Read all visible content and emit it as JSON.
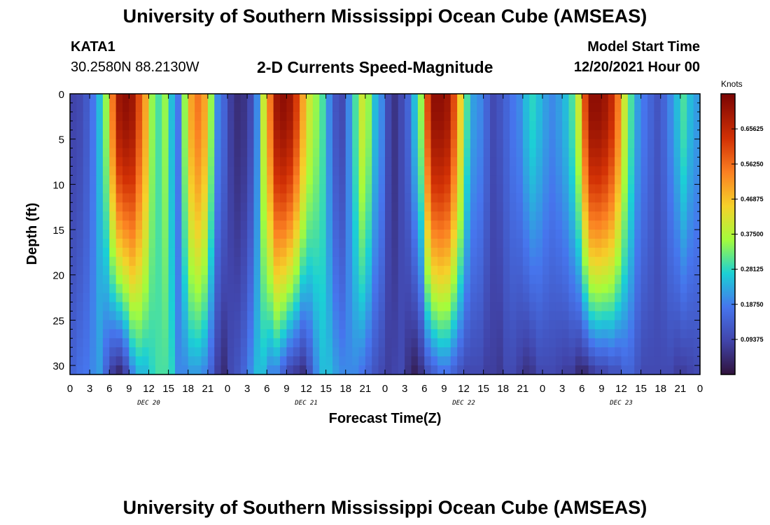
{
  "header": {
    "title": "University of Southern Mississippi Ocean Cube (AMSEAS)",
    "station": "KATA1",
    "coords": "30.2580N  88.2130W",
    "plot_title": "2-D Currents Speed-Magnitude",
    "model_start_label": "Model Start Time",
    "model_start_date": "12/20/2021 Hour 00"
  },
  "footer": {
    "title": "University of Southern Mississippi Ocean Cube (AMSEAS)"
  },
  "colorbar": {
    "units": "Knots",
    "ticks": [
      "0.65625",
      "0.56250",
      "0.46875",
      "0.37500",
      "0.28125",
      "0.18750",
      "0.09375"
    ],
    "tick_values": [
      0.65625,
      0.5625,
      0.46875,
      0.375,
      0.28125,
      0.1875,
      0.09375
    ],
    "range": [
      0,
      0.75
    ]
  },
  "chart_data": {
    "type": "heatmap",
    "title": "2-D Currents Speed-Magnitude",
    "xlabel": "Forecast Time(Z)",
    "ylabel": "Depth (ft)",
    "x_range_hours": [
      0,
      96
    ],
    "y_range_ft": [
      0,
      31
    ],
    "x_ticks": [
      "0",
      "3",
      "6",
      "9",
      "12",
      "15",
      "18",
      "21",
      "0",
      "3",
      "6",
      "9",
      "12",
      "15",
      "18",
      "21",
      "0",
      "3",
      "6",
      "9",
      "12",
      "15",
      "18",
      "21",
      "0",
      "3",
      "6",
      "9",
      "12",
      "15",
      "18",
      "21",
      "0"
    ],
    "x_tick_hours": [
      0,
      3,
      6,
      9,
      12,
      15,
      18,
      21,
      24,
      27,
      30,
      33,
      36,
      39,
      42,
      45,
      48,
      51,
      54,
      57,
      60,
      63,
      66,
      69,
      72,
      75,
      78,
      81,
      84,
      87,
      90,
      93,
      96
    ],
    "day_labels": [
      "DEC 20",
      "DEC 21",
      "DEC 22",
      "DEC 23"
    ],
    "day_label_hours": [
      12,
      36,
      60,
      84
    ],
    "y_ticks": [
      "0",
      "5",
      "10",
      "15",
      "20",
      "25",
      "30"
    ],
    "y_tick_values": [
      0,
      5,
      10,
      15,
      20,
      25,
      30
    ],
    "value_units": "Knots",
    "surface_speed_knots": [
      0.09,
      0.1,
      0.13,
      0.18,
      0.25,
      0.35,
      0.55,
      0.7,
      0.72,
      0.7,
      0.6,
      0.5,
      0.35,
      0.3,
      0.35,
      0.25,
      0.18,
      0.35,
      0.5,
      0.55,
      0.5,
      0.35,
      0.2,
      0.15,
      0.08,
      0.05,
      0.06,
      0.1,
      0.2,
      0.4,
      0.55,
      0.7,
      0.72,
      0.7,
      0.62,
      0.5,
      0.4,
      0.35,
      0.3,
      0.2,
      0.12,
      0.1,
      0.2,
      0.3,
      0.4,
      0.35,
      0.25,
      0.2,
      0.1,
      0.06,
      0.1,
      0.15,
      0.25,
      0.35,
      0.6,
      0.72,
      0.72,
      0.7,
      0.6,
      0.45,
      0.3,
      0.22,
      0.2,
      0.15,
      0.1,
      0.12,
      0.15,
      0.18,
      0.2,
      0.25,
      0.28,
      0.25,
      0.22,
      0.2,
      0.22,
      0.25,
      0.3,
      0.4,
      0.6,
      0.72,
      0.72,
      0.7,
      0.65,
      0.55,
      0.4,
      0.3,
      0.22,
      0.18,
      0.15,
      0.12,
      0.15,
      0.2,
      0.25,
      0.3,
      0.25,
      0.22
    ],
    "bottom_speed_knots": [
      0.15,
      0.17,
      0.18,
      0.2,
      0.22,
      0.15,
      0.08,
      0.05,
      0.1,
      0.2,
      0.25,
      0.25,
      0.28,
      0.3,
      0.3,
      0.28,
      0.2,
      0.2,
      0.22,
      0.22,
      0.2,
      0.15,
      0.08,
      0.05,
      0.1,
      0.12,
      0.15,
      0.2,
      0.25,
      0.25,
      0.2,
      0.2,
      0.15,
      0.1,
      0.08,
      0.06,
      0.12,
      0.2,
      0.25,
      0.25,
      0.22,
      0.2,
      0.2,
      0.2,
      0.18,
      0.15,
      0.12,
      0.1,
      0.08,
      0.09,
      0.1,
      0.06,
      0.03,
      0.06,
      0.12,
      0.15,
      0.18,
      0.18,
      0.15,
      0.12,
      0.1,
      0.1,
      0.1,
      0.08,
      0.08,
      0.07,
      0.1,
      0.1,
      0.08,
      0.06,
      0.07,
      0.1,
      0.1,
      0.1,
      0.09,
      0.08,
      0.08,
      0.05,
      0.05,
      0.08,
      0.1,
      0.1,
      0.12,
      0.12,
      0.15,
      0.15,
      0.12,
      0.1,
      0.1,
      0.1,
      0.1,
      0.1,
      0.08,
      0.08,
      0.09,
      0.1
    ]
  }
}
